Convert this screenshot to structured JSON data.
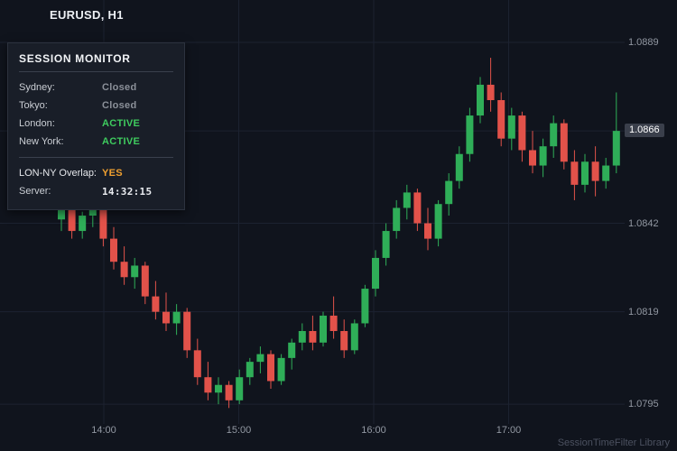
{
  "header": {
    "symbol_title": "EURUSD, H1"
  },
  "session_monitor": {
    "title": "SESSION MONITOR",
    "sessions": [
      {
        "name": "Sydney:",
        "status": "Closed"
      },
      {
        "name": "Tokyo:",
        "status": "Closed"
      },
      {
        "name": "London:",
        "status": "ACTIVE"
      },
      {
        "name": "New York:",
        "status": "ACTIVE"
      }
    ],
    "overlap_label": "LON-NY Overlap:",
    "overlap_value": "YES",
    "server_label": "Server:",
    "server_time": "14:32:15"
  },
  "watermark": "SessionTimeFilter Library",
  "colors": {
    "background": "#10141d",
    "panel_bg": "#191e28",
    "up": "#2fae58",
    "down": "#e2524a",
    "active_green": "#3ecb5e",
    "closed_gray": "#8b9099",
    "overlap_orange": "#f0a030",
    "axis_text": "#9298a2",
    "grid": "#1c2230"
  },
  "chart_data": {
    "type": "candlestick",
    "symbol": "EURUSD",
    "timeframe": "H1",
    "title": "EURUSD, H1",
    "y_ticks": [
      "1.0889",
      "1.0866",
      "1.0842",
      "1.0819",
      "1.0795"
    ],
    "x_ticks": [
      "14:00",
      "15:00",
      "16:00",
      "17:00"
    ],
    "ylim": [
      1.079,
      1.0895
    ],
    "current_price": "1.0866",
    "candles": [
      [
        1.0843,
        1.0848,
        1.084,
        1.0846
      ],
      [
        1.0846,
        1.0849,
        1.0838,
        1.084
      ],
      [
        1.084,
        1.0845,
        1.0838,
        1.0844
      ],
      [
        1.0844,
        1.0847,
        1.0841,
        1.0846
      ],
      [
        1.0846,
        1.0847,
        1.0836,
        1.0838
      ],
      [
        1.0838,
        1.0841,
        1.083,
        1.0832
      ],
      [
        1.0832,
        1.0836,
        1.0826,
        1.0828
      ],
      [
        1.0828,
        1.0833,
        1.0825,
        1.0831
      ],
      [
        1.0831,
        1.0832,
        1.0821,
        1.0823
      ],
      [
        1.0823,
        1.0827,
        1.0817,
        1.0819
      ],
      [
        1.0819,
        1.0824,
        1.0814,
        1.0816
      ],
      [
        1.0816,
        1.0821,
        1.0813,
        1.0819
      ],
      [
        1.0819,
        1.082,
        1.0807,
        1.0809
      ],
      [
        1.0809,
        1.0812,
        1.08,
        1.0802
      ],
      [
        1.0802,
        1.0806,
        1.0796,
        1.0798
      ],
      [
        1.0798,
        1.0802,
        1.0795,
        1.08
      ],
      [
        1.08,
        1.0801,
        1.0794,
        1.0796
      ],
      [
        1.0796,
        1.0804,
        1.0795,
        1.0802
      ],
      [
        1.0802,
        1.0807,
        1.08,
        1.0806
      ],
      [
        1.0806,
        1.081,
        1.0803,
        1.0808
      ],
      [
        1.0808,
        1.0809,
        1.0799,
        1.0801
      ],
      [
        1.0801,
        1.0808,
        1.08,
        1.0807
      ],
      [
        1.0807,
        1.0812,
        1.0804,
        1.0811
      ],
      [
        1.0811,
        1.0816,
        1.0809,
        1.0814
      ],
      [
        1.0814,
        1.0818,
        1.0809,
        1.0811
      ],
      [
        1.0811,
        1.0819,
        1.081,
        1.0818
      ],
      [
        1.0818,
        1.0823,
        1.0812,
        1.0814
      ],
      [
        1.0814,
        1.0817,
        1.0807,
        1.0809
      ],
      [
        1.0809,
        1.0817,
        1.0808,
        1.0816
      ],
      [
        1.0816,
        1.0826,
        1.0815,
        1.0825
      ],
      [
        1.0825,
        1.0835,
        1.0823,
        1.0833
      ],
      [
        1.0833,
        1.0842,
        1.0831,
        1.084
      ],
      [
        1.084,
        1.0848,
        1.0838,
        1.0846
      ],
      [
        1.0846,
        1.0852,
        1.0843,
        1.085
      ],
      [
        1.085,
        1.0851,
        1.084,
        1.0842
      ],
      [
        1.0842,
        1.0846,
        1.0835,
        1.0838
      ],
      [
        1.0838,
        1.0848,
        1.0836,
        1.0847
      ],
      [
        1.0847,
        1.0855,
        1.0844,
        1.0853
      ],
      [
        1.0853,
        1.0862,
        1.0851,
        1.086
      ],
      [
        1.086,
        1.0872,
        1.0858,
        1.087
      ],
      [
        1.087,
        1.088,
        1.0868,
        1.0878
      ],
      [
        1.0878,
        1.0885,
        1.0871,
        1.0874
      ],
      [
        1.0874,
        1.0876,
        1.0862,
        1.0864
      ],
      [
        1.0864,
        1.0872,
        1.0861,
        1.087
      ],
      [
        1.087,
        1.0871,
        1.0858,
        1.0861
      ],
      [
        1.0861,
        1.0866,
        1.0855,
        1.0857
      ],
      [
        1.0857,
        1.0864,
        1.0854,
        1.0862
      ],
      [
        1.0862,
        1.087,
        1.0859,
        1.0868
      ],
      [
        1.0868,
        1.0869,
        1.0856,
        1.0858
      ],
      [
        1.0858,
        1.0861,
        1.0848,
        1.0852
      ],
      [
        1.0852,
        1.086,
        1.085,
        1.0858
      ],
      [
        1.0858,
        1.0862,
        1.0849,
        1.0853
      ],
      [
        1.0853,
        1.0859,
        1.0851,
        1.0857
      ],
      [
        1.0857,
        1.0876,
        1.0855,
        1.0866
      ]
    ]
  }
}
